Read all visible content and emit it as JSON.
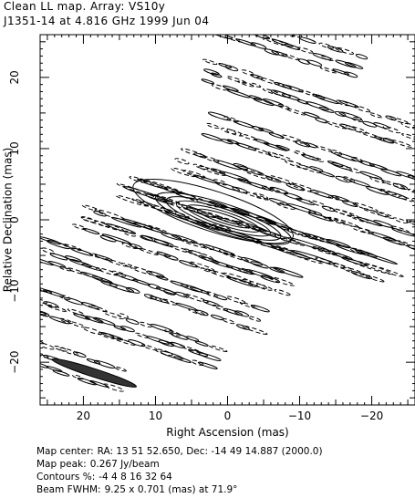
{
  "chart_data": {
    "type": "contour",
    "title": "Clean LL map.  Array:  VS10y",
    "subtitle": "J1351-14 at 4.816 GHz 1999 Jun 04",
    "xlabel": "Right Ascension  (mas)",
    "ylabel": "Relative Declination  (mas)",
    "xlim": [
      26,
      -26
    ],
    "ylim": [
      -26,
      26
    ],
    "x_ticks": [
      20,
      10,
      0,
      -10,
      -20
    ],
    "y_ticks": [
      20,
      10,
      0,
      -10,
      -20
    ],
    "contour_levels_percent": [
      -4,
      4,
      8,
      16,
      32,
      64
    ],
    "map_peak_jy_per_beam": 0.267,
    "beam": {
      "major_mas": 9.25,
      "minor_mas": 0.701,
      "pa_deg": 71.9,
      "center": [
        18.5,
        -21.5
      ]
    },
    "peak_position_mas": [
      0,
      0
    ]
  },
  "footer": {
    "map_center_label": "Map center:",
    "map_center": "RA: 13 51 52.650,  Dec: -14 49 14.887 (2000.0)",
    "map_peak_label": "Map peak:",
    "map_peak": "0.267 Jy/beam",
    "contours_label": "Contours %:",
    "contours": "-4 4 8 16 32 64",
    "beam_label": "Beam FWHM:",
    "beam": "9.25 x 0.701 (mas) at 71.9°"
  },
  "colors": {
    "ink": "#000000",
    "background": "#ffffff",
    "beam_fill": "#333333"
  }
}
